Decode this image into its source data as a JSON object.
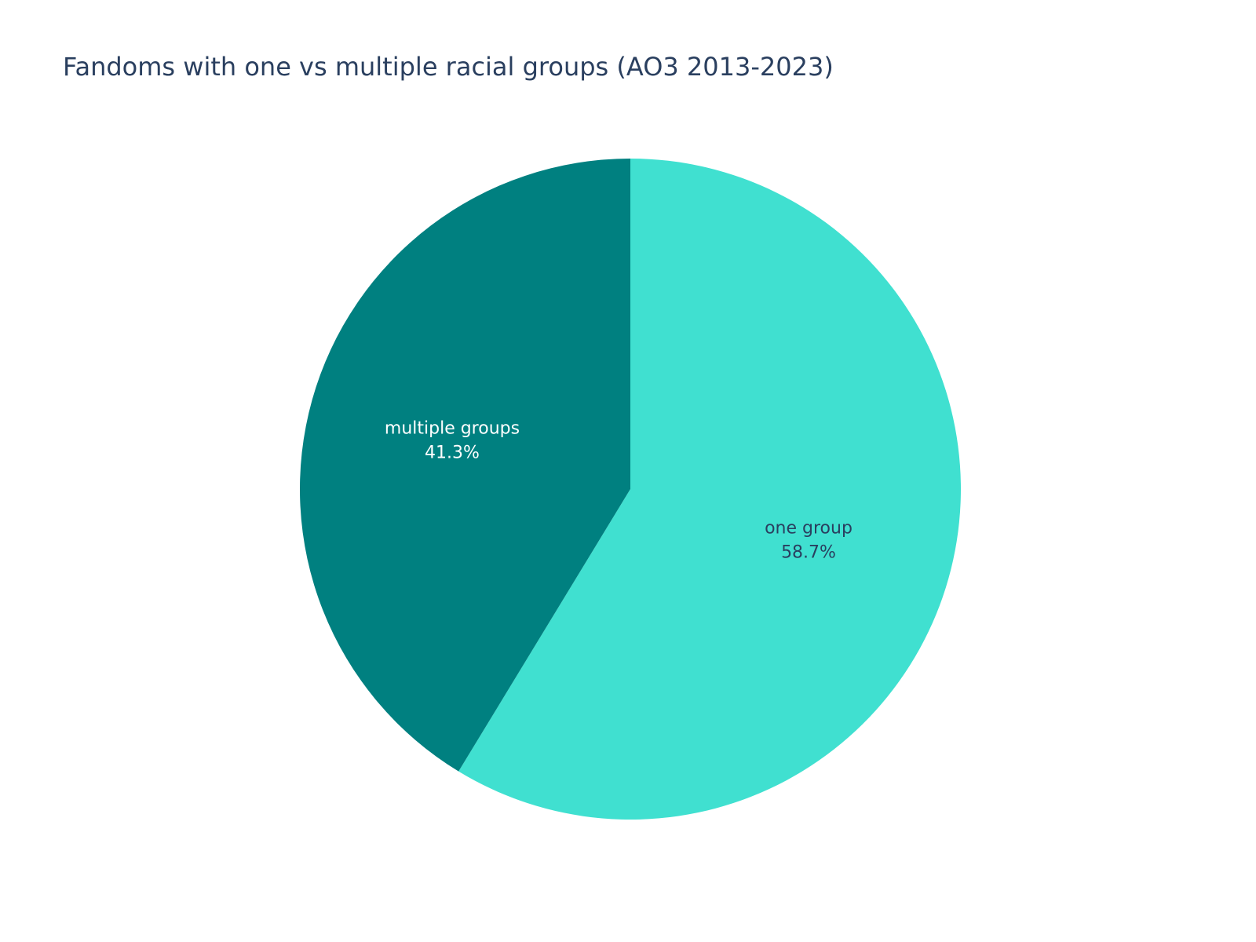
{
  "chart_data": {
    "type": "pie",
    "title": "Fandoms with one vs multiple racial groups (AO3 2013-2023)",
    "slices": [
      {
        "label": "one group",
        "value": 58.7,
        "percent_label": "58.7%",
        "color": "#40e0d0",
        "text_color": "#2a3f5f"
      },
      {
        "label": "multiple groups",
        "value": 41.3,
        "percent_label": "41.3%",
        "color": "#008080",
        "text_color": "#ffffff"
      }
    ],
    "start_angle": "12 o'clock",
    "direction": "clockwise",
    "legend": "none"
  }
}
